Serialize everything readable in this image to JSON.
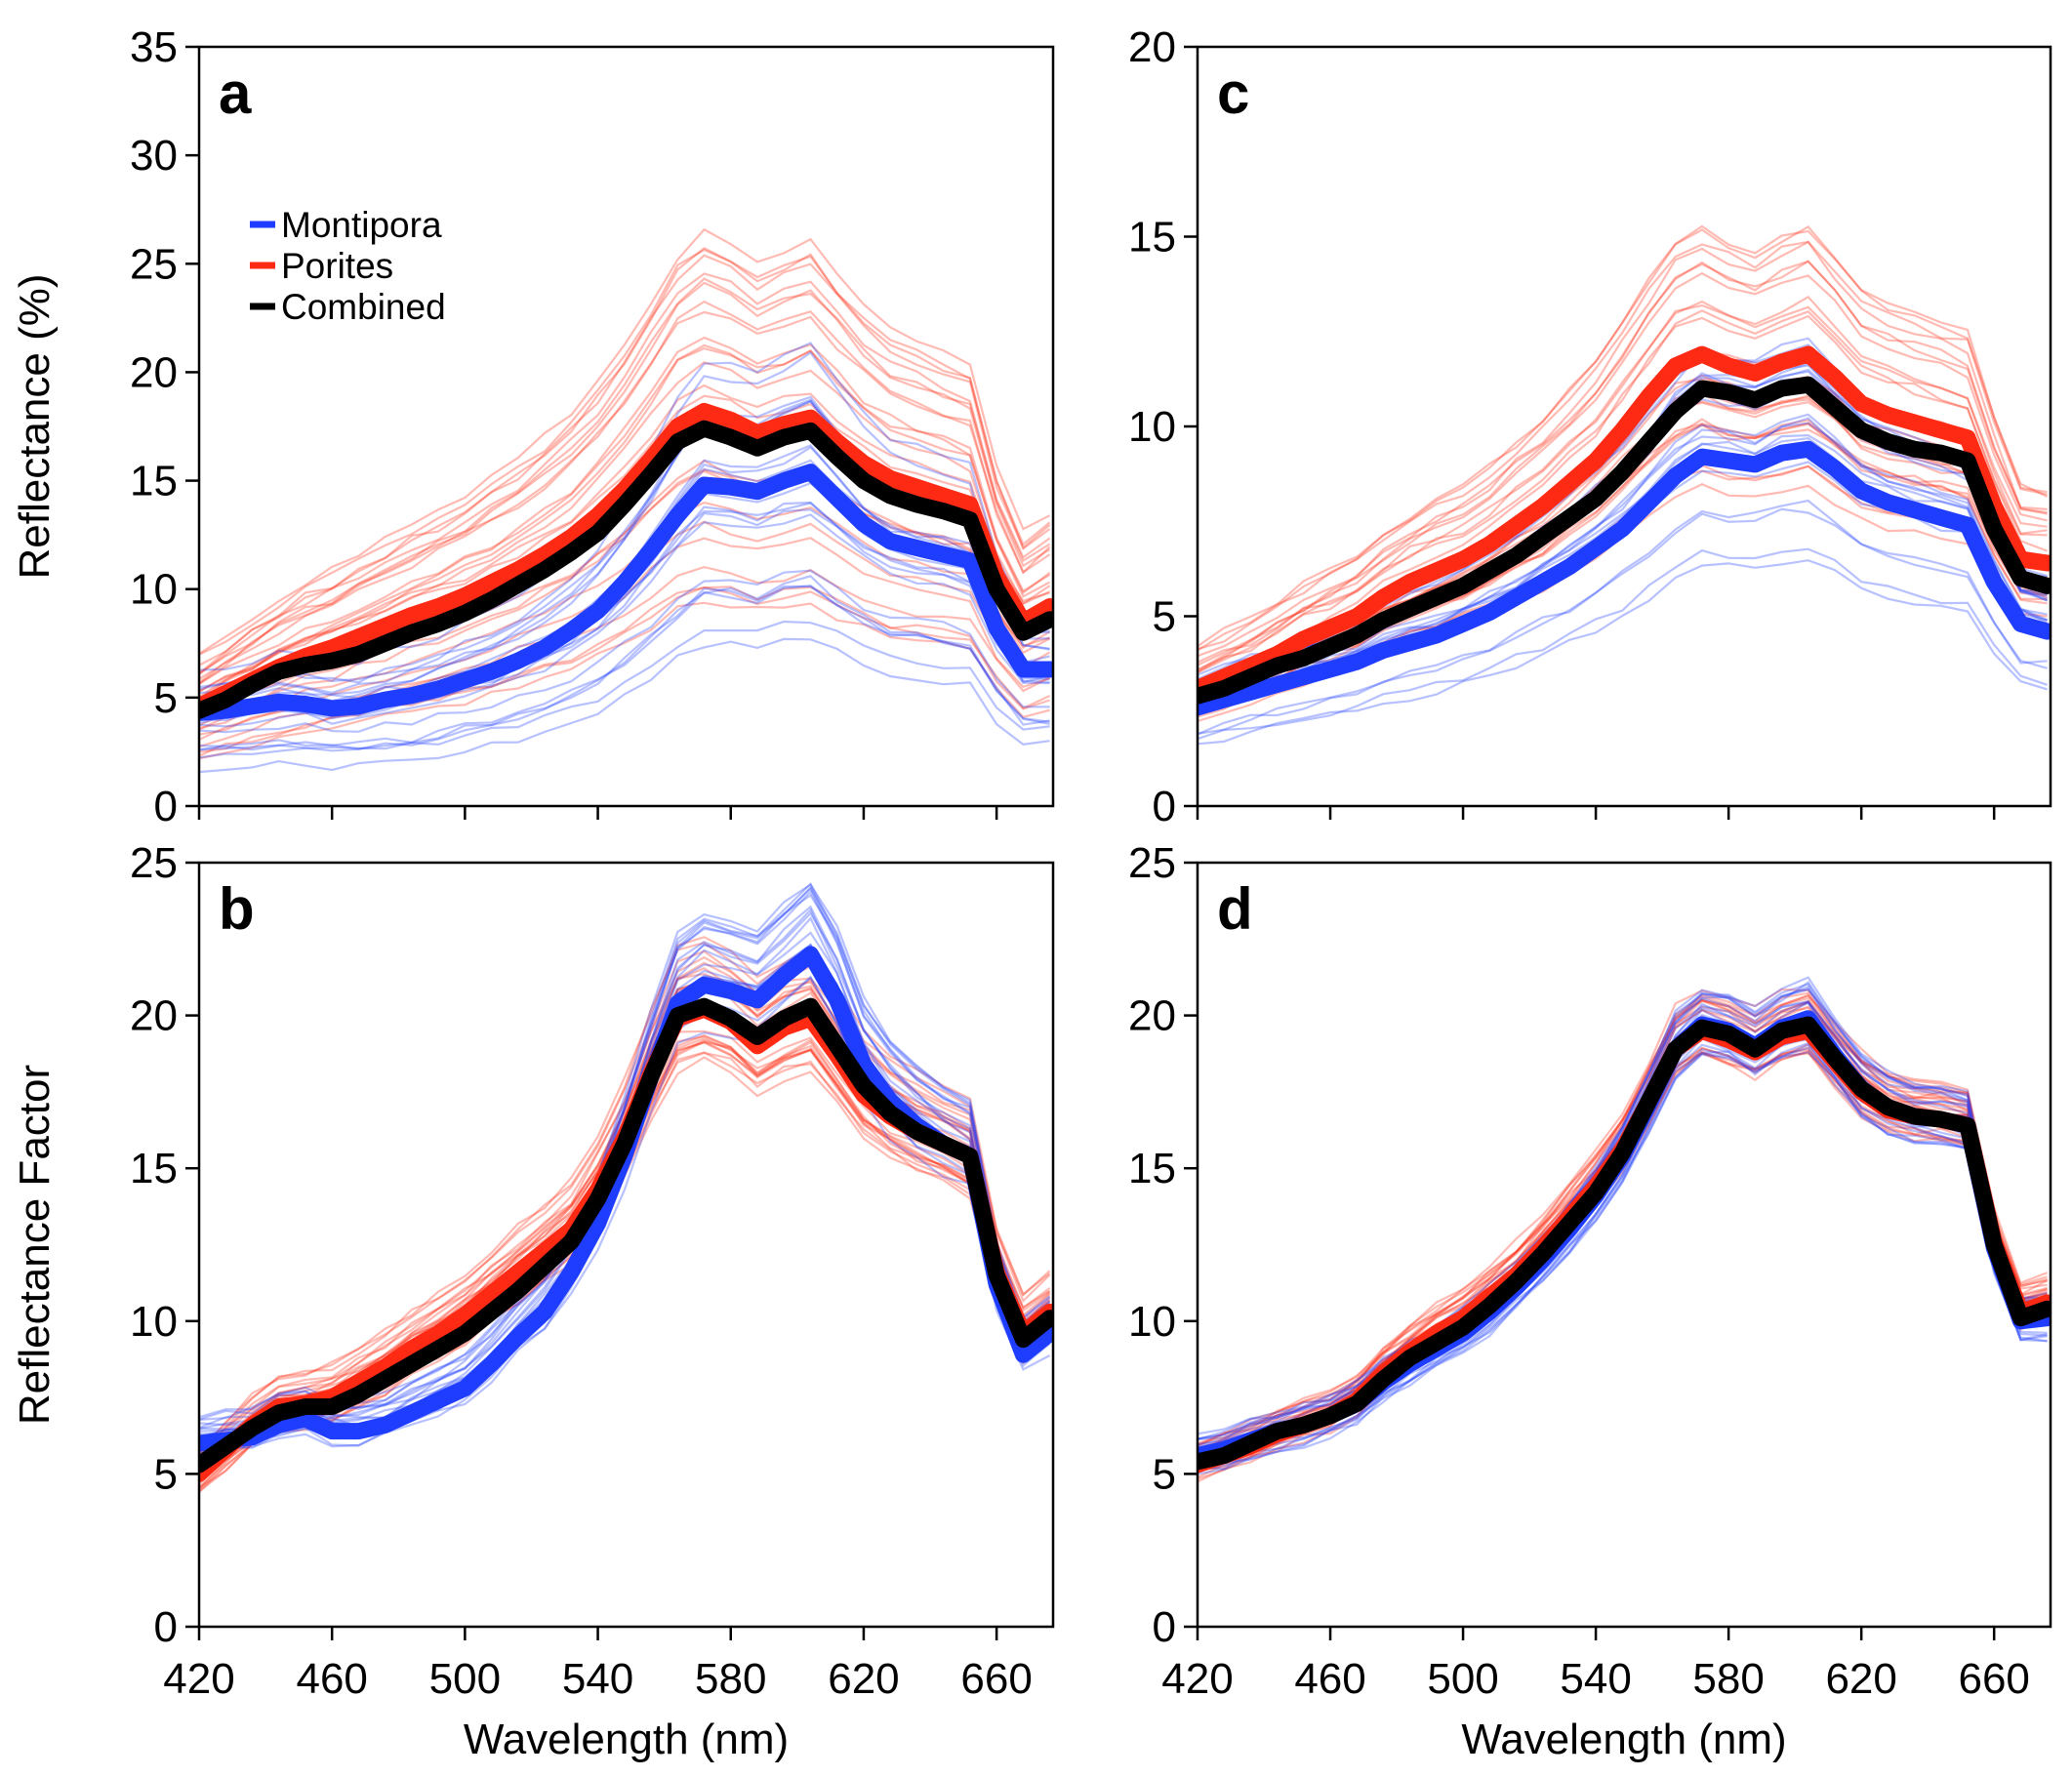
{
  "chart_data": [
    {
      "panel": "a",
      "type": "line",
      "ylabel": "Reflectance (%)",
      "xlabel": "",
      "xlim": [
        420,
        677
      ],
      "ylim": [
        0,
        35
      ],
      "xticks": [
        420,
        460,
        500,
        540,
        580,
        620,
        660
      ],
      "yticks": [
        0,
        5,
        10,
        15,
        20,
        25,
        30,
        35
      ],
      "x": [
        420,
        428,
        436,
        444,
        452,
        460,
        468,
        476,
        484,
        492,
        500,
        508,
        516,
        524,
        532,
        540,
        548,
        556,
        564,
        572,
        580,
        588,
        596,
        604,
        612,
        620,
        628,
        636,
        644,
        652,
        660,
        668,
        676
      ],
      "series": [
        {
          "name": "Montipora",
          "values": [
            4.3,
            4.4,
            4.6,
            4.8,
            4.7,
            4.5,
            4.6,
            4.9,
            5.1,
            5.4,
            5.8,
            6.2,
            6.7,
            7.3,
            8.1,
            9.0,
            10.3,
            11.8,
            13.4,
            14.8,
            14.7,
            14.5,
            15.0,
            15.4,
            14.2,
            13.0,
            12.2,
            11.9,
            11.6,
            11.3,
            8.2,
            6.3,
            6.3
          ]
        },
        {
          "name": "Porites",
          "values": [
            4.6,
            5.2,
            5.8,
            6.4,
            6.9,
            7.3,
            7.8,
            8.3,
            8.8,
            9.2,
            9.7,
            10.3,
            10.9,
            11.6,
            12.4,
            13.4,
            14.6,
            16.0,
            17.5,
            18.2,
            17.8,
            17.2,
            17.6,
            17.9,
            16.8,
            15.8,
            15.1,
            14.7,
            14.3,
            13.9,
            10.6,
            8.5,
            9.2
          ]
        },
        {
          "name": "Combined",
          "values": [
            4.4,
            4.9,
            5.6,
            6.2,
            6.5,
            6.7,
            7.0,
            7.5,
            8.0,
            8.4,
            8.9,
            9.5,
            10.2,
            10.9,
            11.7,
            12.6,
            13.9,
            15.3,
            16.8,
            17.4,
            17.0,
            16.5,
            17.0,
            17.3,
            16.1,
            15.0,
            14.3,
            13.9,
            13.6,
            13.2,
            10.0,
            8.0,
            8.6
          ]
        }
      ],
      "legend": [
        "Montipora",
        "Porites",
        "Combined"
      ],
      "legend_position": "top-left"
    },
    {
      "panel": "b",
      "type": "line",
      "ylabel": "Reflectance Factor",
      "xlabel": "Wavelength (nm)",
      "xlim": [
        420,
        677
      ],
      "ylim": [
        0,
        25
      ],
      "xticks": [
        420,
        460,
        500,
        540,
        580,
        620,
        660
      ],
      "yticks": [
        0,
        5,
        10,
        15,
        20,
        25
      ],
      "x": [
        420,
        428,
        436,
        444,
        452,
        460,
        468,
        476,
        484,
        492,
        500,
        508,
        516,
        524,
        532,
        540,
        548,
        556,
        564,
        572,
        580,
        588,
        596,
        604,
        612,
        620,
        628,
        636,
        644,
        652,
        660,
        668,
        676
      ],
      "series": [
        {
          "name": "Montipora",
          "values": [
            6.0,
            6.1,
            6.2,
            6.6,
            6.8,
            6.4,
            6.4,
            6.6,
            7.0,
            7.4,
            7.8,
            8.6,
            9.5,
            10.3,
            11.6,
            13.2,
            15.4,
            18.0,
            20.4,
            21.0,
            20.8,
            20.5,
            21.3,
            22.0,
            20.5,
            18.4,
            17.2,
            16.4,
            15.8,
            15.4,
            11.2,
            8.9,
            9.6
          ]
        },
        {
          "name": "Porites",
          "values": [
            5.0,
            5.8,
            6.6,
            7.2,
            7.3,
            7.5,
            8.0,
            8.5,
            9.1,
            9.6,
            10.2,
            10.9,
            11.6,
            12.3,
            13.0,
            14.3,
            16.0,
            18.1,
            19.9,
            20.2,
            19.8,
            19.0,
            19.6,
            19.9,
            18.7,
            17.4,
            16.7,
            16.2,
            15.8,
            15.4,
            11.6,
            9.6,
            10.3
          ]
        },
        {
          "name": "Combined",
          "values": [
            5.3,
            5.9,
            6.5,
            7.0,
            7.2,
            7.2,
            7.6,
            8.1,
            8.6,
            9.1,
            9.6,
            10.3,
            11.0,
            11.8,
            12.6,
            14.0,
            15.8,
            18.0,
            20.0,
            20.3,
            19.9,
            19.3,
            19.9,
            20.3,
            19.0,
            17.7,
            16.8,
            16.2,
            15.8,
            15.4,
            11.5,
            9.4,
            10.1
          ]
        }
      ]
    },
    {
      "panel": "c",
      "type": "line",
      "ylabel": "",
      "xlabel": "",
      "xlim": [
        420,
        677
      ],
      "ylim": [
        0,
        20
      ],
      "xticks": [
        420,
        460,
        500,
        540,
        580,
        620,
        660
      ],
      "yticks": [
        0,
        5,
        10,
        15,
        20
      ],
      "x": [
        420,
        428,
        436,
        444,
        452,
        460,
        468,
        476,
        484,
        492,
        500,
        508,
        516,
        524,
        532,
        540,
        548,
        556,
        564,
        572,
        580,
        588,
        596,
        604,
        612,
        620,
        628,
        636,
        644,
        652,
        660,
        668,
        676
      ],
      "series": [
        {
          "name": "Montipora",
          "values": [
            2.6,
            2.8,
            3.0,
            3.2,
            3.4,
            3.6,
            3.8,
            4.1,
            4.3,
            4.5,
            4.8,
            5.1,
            5.5,
            5.9,
            6.3,
            6.8,
            7.3,
            8.0,
            8.7,
            9.2,
            9.1,
            9.0,
            9.3,
            9.4,
            8.9,
            8.3,
            8.0,
            7.8,
            7.6,
            7.4,
            5.9,
            4.8,
            4.6
          ]
        },
        {
          "name": "Porites",
          "values": [
            3.1,
            3.4,
            3.7,
            4.0,
            4.4,
            4.7,
            5.0,
            5.5,
            5.9,
            6.2,
            6.5,
            6.9,
            7.4,
            7.9,
            8.5,
            9.1,
            9.9,
            10.8,
            11.6,
            11.9,
            11.6,
            11.4,
            11.7,
            11.9,
            11.3,
            10.6,
            10.3,
            10.1,
            9.9,
            9.7,
            7.9,
            6.5,
            6.4
          ]
        },
        {
          "name": "Combined",
          "values": [
            2.9,
            3.1,
            3.4,
            3.7,
            3.9,
            4.2,
            4.5,
            4.9,
            5.2,
            5.5,
            5.8,
            6.2,
            6.6,
            7.1,
            7.6,
            8.1,
            8.8,
            9.6,
            10.4,
            11.0,
            10.9,
            10.7,
            11.0,
            11.1,
            10.5,
            9.9,
            9.6,
            9.4,
            9.3,
            9.1,
            7.3,
            6.0,
            5.8
          ]
        }
      ]
    },
    {
      "panel": "d",
      "type": "line",
      "ylabel": "",
      "xlabel": "Wavelength (nm)",
      "xlim": [
        420,
        677
      ],
      "ylim": [
        0,
        25
      ],
      "xticks": [
        420,
        460,
        500,
        540,
        580,
        620,
        660
      ],
      "yticks": [
        0,
        5,
        10,
        15,
        20,
        25
      ],
      "x": [
        420,
        428,
        436,
        444,
        452,
        460,
        468,
        476,
        484,
        492,
        500,
        508,
        516,
        524,
        532,
        540,
        548,
        556,
        564,
        572,
        580,
        588,
        596,
        604,
        612,
        620,
        628,
        636,
        644,
        652,
        660,
        668,
        676
      ],
      "series": [
        {
          "name": "Montipora",
          "values": [
            5.6,
            5.8,
            6.1,
            6.4,
            6.6,
            6.9,
            7.3,
            8.0,
            8.6,
            9.1,
            9.6,
            10.3,
            11.1,
            12.0,
            13.0,
            14.1,
            15.4,
            17.1,
            18.9,
            19.7,
            19.5,
            19.0,
            19.6,
            19.9,
            18.7,
            17.6,
            17.0,
            16.7,
            16.6,
            16.4,
            12.4,
            10.0,
            10.1
          ]
        },
        {
          "name": "Porites",
          "values": [
            5.3,
            5.6,
            5.9,
            6.3,
            6.6,
            6.9,
            7.4,
            8.3,
            9.0,
            9.6,
            10.1,
            10.8,
            11.5,
            12.4,
            13.4,
            14.4,
            15.6,
            17.2,
            18.9,
            19.5,
            19.2,
            18.8,
            19.3,
            19.5,
            18.5,
            17.5,
            16.9,
            16.7,
            16.6,
            16.4,
            12.6,
            10.3,
            10.6
          ]
        },
        {
          "name": "Combined",
          "values": [
            5.4,
            5.6,
            6.0,
            6.4,
            6.6,
            6.9,
            7.3,
            8.1,
            8.8,
            9.3,
            9.8,
            10.5,
            11.3,
            12.2,
            13.2,
            14.2,
            15.5,
            17.2,
            18.9,
            19.6,
            19.4,
            18.9,
            19.5,
            19.7,
            18.6,
            17.6,
            17.0,
            16.7,
            16.6,
            16.4,
            12.5,
            10.1,
            10.4
          ]
        }
      ]
    }
  ],
  "colors": {
    "Montipora": "#1f3dff",
    "Porites": "#ff2a14",
    "Combined": "#000000"
  }
}
